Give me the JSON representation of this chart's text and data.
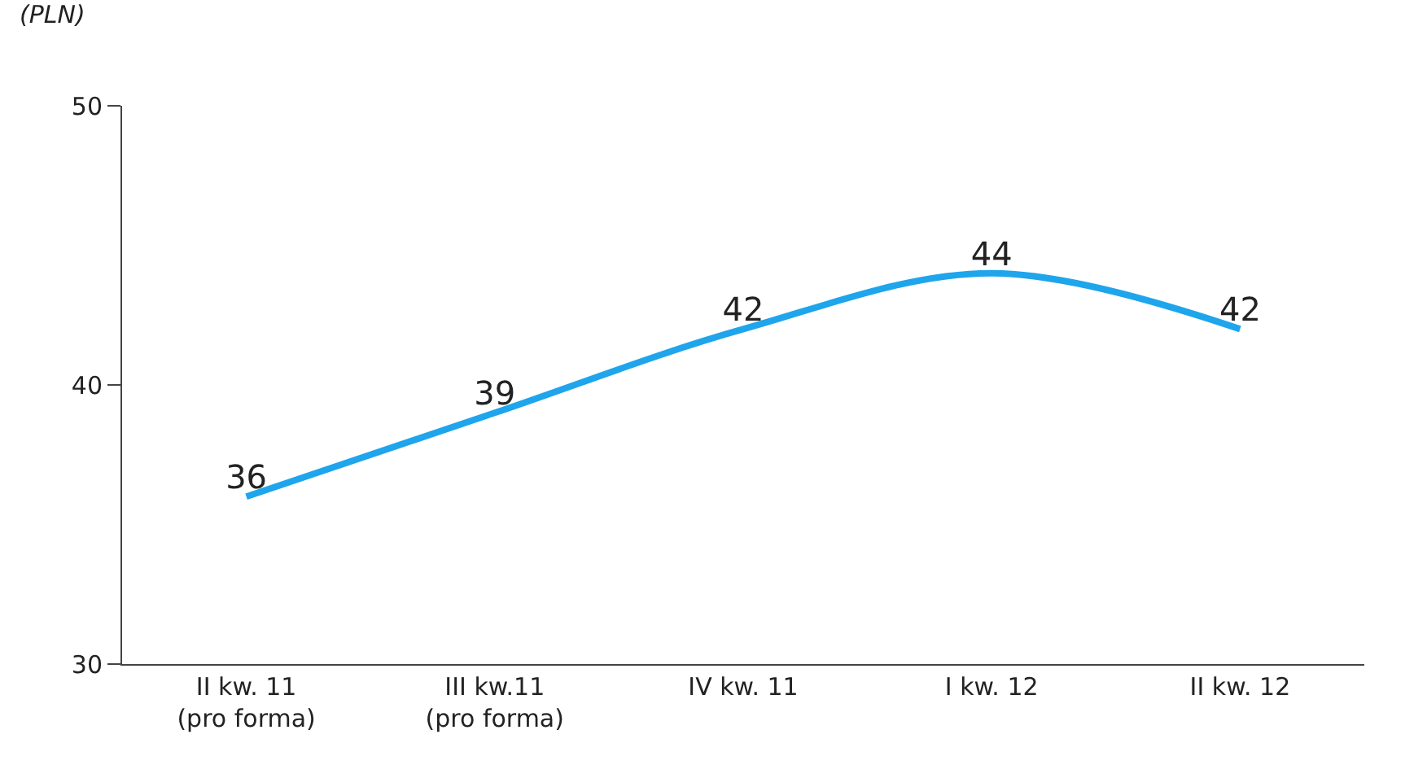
{
  "chart_data": {
    "type": "line",
    "ylabel": "(PLN)",
    "categories": [
      "II kw. 11\n(pro forma)",
      "III kw.11\n(pro forma)",
      "IV kw. 11",
      "I kw. 12",
      "II kw. 12"
    ],
    "series": [
      {
        "color": "#1ea5ec",
        "values": [
          36,
          39,
          42,
          44,
          42
        ]
      }
    ],
    "ylim": [
      30,
      50
    ],
    "yticks": [
      30,
      40,
      50
    ],
    "data_labels": true,
    "marker": "none",
    "line_style": "solid"
  }
}
